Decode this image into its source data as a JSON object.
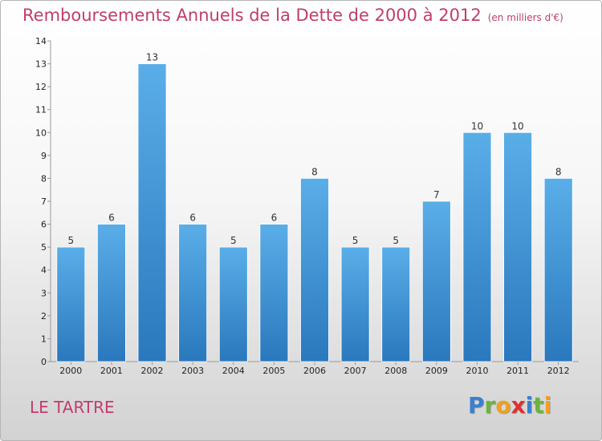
{
  "title": "Remboursements Annuels de la Dette de 2000 à 2012",
  "unit_note": "(en milliers d'€)",
  "town": "LE TARTRE",
  "logo": {
    "letters": [
      {
        "ch": "P",
        "color": "#3a7fd0"
      },
      {
        "ch": "r",
        "color": "#6cb33e"
      },
      {
        "ch": "o",
        "color": "#f0a020"
      },
      {
        "ch": "x",
        "color": "#e03030"
      },
      {
        "ch": "i",
        "color": "#3a7fd0"
      },
      {
        "ch": "t",
        "color": "#6cb33e"
      },
      {
        "ch": "i",
        "color": "#f0a020"
      }
    ]
  },
  "chart_data": {
    "type": "bar",
    "title": "Remboursements Annuels de la Dette de 2000 à 2012",
    "xlabel": "",
    "ylabel": "",
    "categories": [
      "2000",
      "2001",
      "2002",
      "2003",
      "2004",
      "2005",
      "2006",
      "2007",
      "2008",
      "2009",
      "2010",
      "2011",
      "2012"
    ],
    "values": [
      5,
      6,
      13,
      6,
      5,
      6,
      8,
      5,
      5,
      7,
      10,
      10,
      8
    ],
    "ylim": [
      0,
      14
    ],
    "yticks": [
      0,
      1,
      2,
      3,
      4,
      5,
      6,
      7,
      8,
      9,
      10,
      11,
      12,
      13,
      14
    ],
    "grid": false,
    "bar_color_top": "#5aaee8",
    "bar_color_bottom": "#2a78bd"
  }
}
